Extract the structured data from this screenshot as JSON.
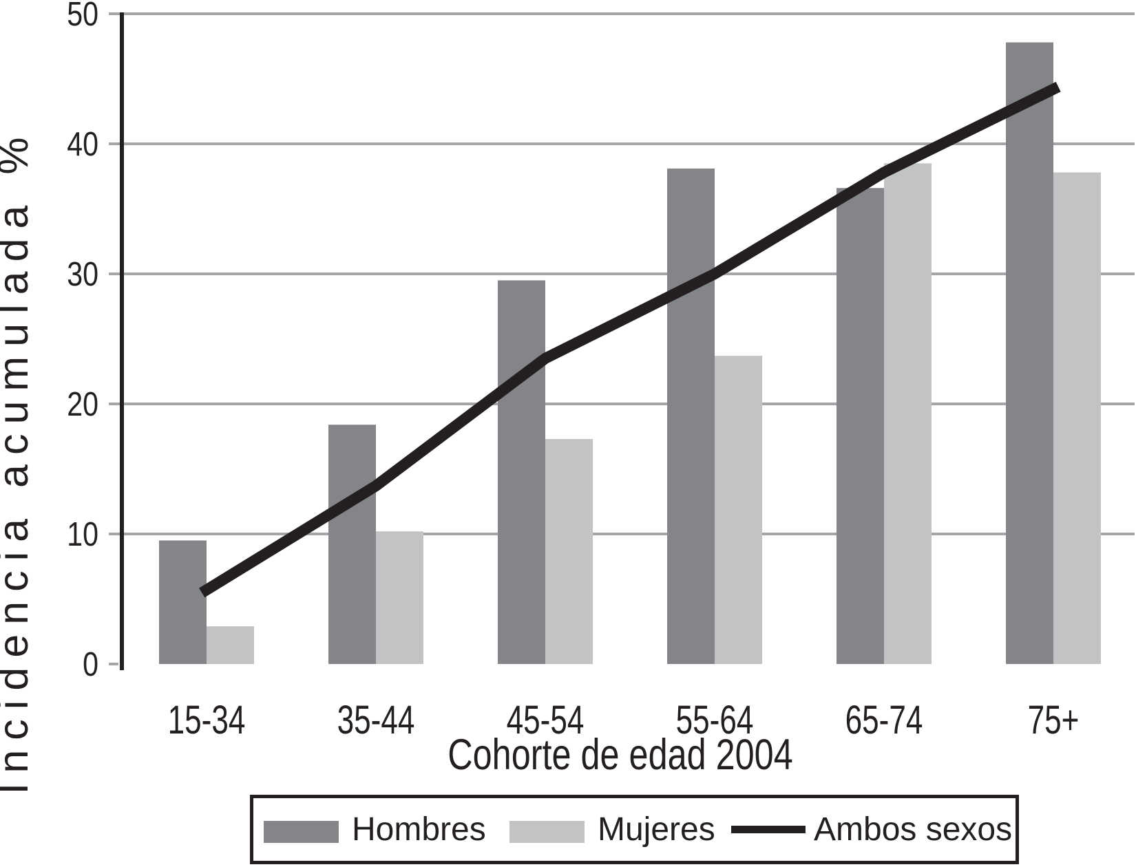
{
  "chart_data": {
    "type": "bar",
    "subtype": "grouped-bars-with-line-overlay",
    "categories": [
      "15-34",
      "35-44",
      "45-54",
      "55-64",
      "65-74",
      "75+"
    ],
    "series": [
      {
        "name": "Hombres",
        "type": "bar",
        "color": "#838588",
        "values": [
          9.5,
          18.4,
          29.5,
          38.1,
          36.6,
          47.8
        ]
      },
      {
        "name": "Mujeres",
        "type": "bar",
        "color": "#c1c3c5",
        "values": [
          2.9,
          10.2,
          17.3,
          23.7,
          38.5,
          37.8
        ]
      },
      {
        "name": "Ambos sexos",
        "type": "line",
        "color": "#231f20",
        "values": [
          5.7,
          13.7,
          23.5,
          30.0,
          37.8,
          44.2
        ]
      }
    ],
    "title": "",
    "xlabel": "Cohorte de edad 2004",
    "ylabel": "Incidencia acumulada %",
    "ylim": [
      0,
      50
    ],
    "yticks": [
      0,
      10,
      20,
      30,
      40,
      50
    ],
    "grid": "horizontal",
    "legend_position": "bottom"
  },
  "colors": {
    "ink": "#231f20",
    "gridline": "#a4a6a9",
    "bar_dark": "#838588",
    "bar_light": "#c1c3c5",
    "background": "#ffffff"
  }
}
